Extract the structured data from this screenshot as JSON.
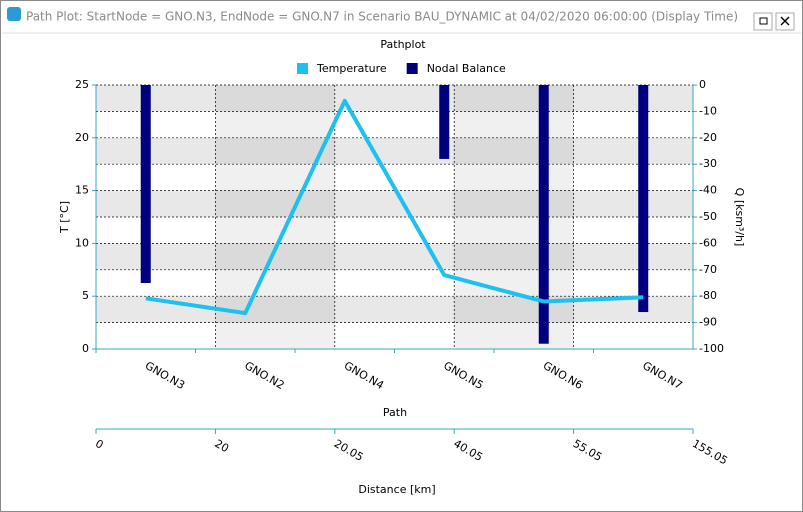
{
  "window_title": "Path Plot: StartNode = GNO.N3, EndNode = GNO.N7 in Scenario BAU_DYNAMIC at 04/02/2020 06:00:00 (Display Time)",
  "chart_data": {
    "type": "line-bar",
    "title": "Pathplot",
    "categories": [
      "GNO.N3",
      "GNO.N2",
      "GNO.N4",
      "GNO.N5",
      "GNO.N6",
      "GNO.N7"
    ],
    "series": [
      {
        "name": "Temperature",
        "color": "#1ec0f0",
        "kind": "line",
        "values": [
          4.8,
          3.4,
          23.5,
          7.0,
          4.5,
          4.9
        ]
      },
      {
        "name": "Nodal Balance",
        "color": "#00007f",
        "kind": "bar",
        "axis": "y2",
        "values": [
          -75,
          null,
          null,
          -28,
          -98,
          -86
        ]
      }
    ],
    "ylabel": "T [°C]",
    "ylim": [
      0,
      25
    ],
    "yticks": [
      0,
      5,
      10,
      15,
      20,
      25
    ],
    "y2label": "Q [ksm³/h]",
    "y2lim": [
      -100,
      0
    ],
    "y2ticks": [
      0,
      -10,
      -20,
      -30,
      -40,
      -50,
      -60,
      -70,
      -80,
      -90,
      -100
    ],
    "grid": true,
    "path_axis": {
      "title": "Path",
      "label": "Distance [km]",
      "ticks": [
        0,
        20,
        20.05,
        40.05,
        55.05,
        155.05
      ]
    }
  }
}
